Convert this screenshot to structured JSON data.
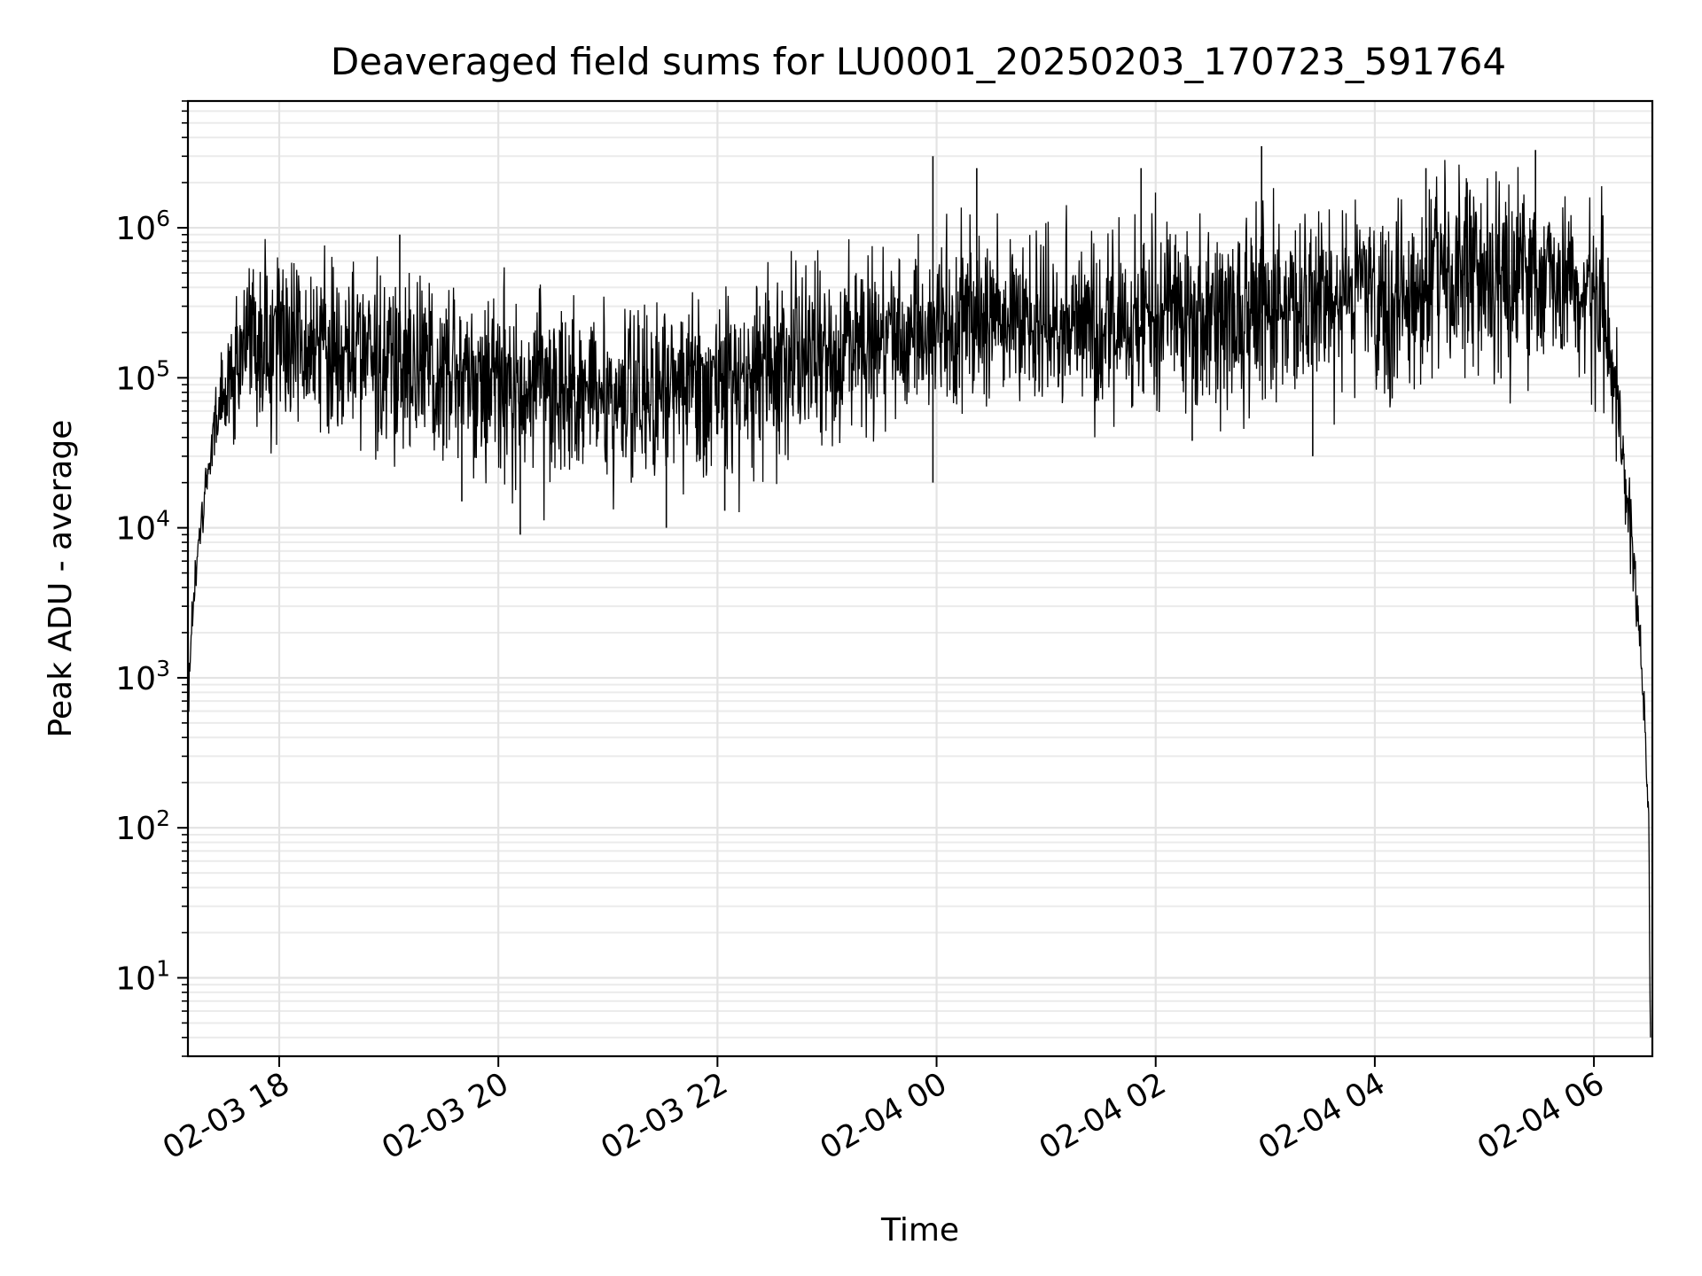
{
  "chart_data": {
    "type": "line",
    "title": "Deaveraged field sums for LU0001_20250203_170723_591764",
    "xlabel": "Time",
    "ylabel": "Peak ADU - average",
    "x_axis": {
      "type": "datetime",
      "range": [
        "2025-02-03T17:10:00",
        "2025-02-04T06:32:00"
      ],
      "ticks": [
        {
          "value": "2025-02-03T18:00",
          "label": "02-03 18"
        },
        {
          "value": "2025-02-03T20:00",
          "label": "02-03 20"
        },
        {
          "value": "2025-02-03T22:00",
          "label": "02-03 22"
        },
        {
          "value": "2025-02-04T00:00",
          "label": "02-04 00"
        },
        {
          "value": "2025-02-04T02:00",
          "label": "02-04 02"
        },
        {
          "value": "2025-02-04T04:00",
          "label": "02-04 04"
        },
        {
          "value": "2025-02-04T06:00",
          "label": "02-04 06"
        }
      ],
      "tick_label_rotation": 30
    },
    "y_axis": {
      "scale": "log",
      "range": [
        3,
        7000000
      ],
      "ticks": [
        {
          "value": 10,
          "base": "10",
          "exponent": "1"
        },
        {
          "value": 100,
          "base": "10",
          "exponent": "2"
        },
        {
          "value": 1000,
          "base": "10",
          "exponent": "3"
        },
        {
          "value": 10000,
          "base": "10",
          "exponent": "4"
        },
        {
          "value": 100000,
          "base": "10",
          "exponent": "5"
        },
        {
          "value": 1000000,
          "base": "10",
          "exponent": "6"
        }
      ]
    },
    "grid": true,
    "grid_minor": true,
    "legend": "none",
    "series": [
      {
        "color": "#000000",
        "points": [
          [
            "2025-02-03T17:10",
            600
          ],
          [
            "2025-02-03T17:12",
            2000
          ],
          [
            "2025-02-03T17:14",
            5000
          ],
          [
            "2025-02-03T17:17",
            10000
          ],
          [
            "2025-02-03T17:20",
            20000
          ],
          [
            "2025-02-03T17:25",
            50000
          ],
          [
            "2025-02-03T17:30",
            80000
          ],
          [
            "2025-02-03T17:36",
            120000
          ],
          [
            "2025-02-03T17:45",
            180000
          ],
          [
            "2025-02-03T18:00",
            170000
          ],
          [
            "2025-02-03T18:20",
            160000
          ],
          [
            "2025-02-03T18:40",
            150000
          ],
          [
            "2025-02-03T19:00",
            130000
          ],
          [
            "2025-02-03T19:20",
            120000
          ],
          [
            "2025-02-03T19:40",
            110000
          ],
          [
            "2025-02-03T20:00",
            90000
          ],
          [
            "2025-02-03T20:20",
            80000
          ],
          [
            "2025-02-03T20:40",
            75000
          ],
          [
            "2025-02-03T21:00",
            80000
          ],
          [
            "2025-02-03T21:20",
            85000
          ],
          [
            "2025-02-03T21:40",
            80000
          ],
          [
            "2025-02-03T22:00",
            90000
          ],
          [
            "2025-02-03T22:20",
            100000
          ],
          [
            "2025-02-03T22:40",
            120000
          ],
          [
            "2025-02-03T23:00",
            140000
          ],
          [
            "2025-02-03T23:20",
            170000
          ],
          [
            "2025-02-03T23:40",
            200000
          ],
          [
            "2025-02-04T00:00",
            220000
          ],
          [
            "2025-02-04T00:20",
            250000
          ],
          [
            "2025-02-04T00:40",
            260000
          ],
          [
            "2025-02-04T01:00",
            260000
          ],
          [
            "2025-02-04T01:20",
            250000
          ],
          [
            "2025-02-04T01:40",
            240000
          ],
          [
            "2025-02-04T02:00",
            240000
          ],
          [
            "2025-02-04T02:20",
            250000
          ],
          [
            "2025-02-04T02:40",
            260000
          ],
          [
            "2025-02-04T03:00",
            270000
          ],
          [
            "2025-02-04T03:20",
            280000
          ],
          [
            "2025-02-04T03:40",
            300000
          ],
          [
            "2025-02-04T04:00",
            320000
          ],
          [
            "2025-02-04T04:20",
            380000
          ],
          [
            "2025-02-04T04:40",
            450000
          ],
          [
            "2025-02-04T05:00",
            500000
          ],
          [
            "2025-02-04T05:20",
            480000
          ],
          [
            "2025-02-04T05:40",
            450000
          ],
          [
            "2025-02-04T06:00",
            400000
          ],
          [
            "2025-02-04T06:05",
            300000
          ],
          [
            "2025-02-04T06:10",
            120000
          ],
          [
            "2025-02-04T06:15",
            40000
          ],
          [
            "2025-02-04T06:20",
            10000
          ],
          [
            "2025-02-04T06:24",
            3000
          ],
          [
            "2025-02-04T06:27",
            800
          ],
          [
            "2025-02-04T06:30",
            100
          ],
          [
            "2025-02-04T06:31",
            4
          ]
        ],
        "noise_scatter_decades": 0.32,
        "spike_maxima": [
          [
            "2025-02-03T19:06",
            900000
          ],
          [
            "2025-02-03T23:58",
            3000000
          ],
          [
            "2025-02-04T00:22",
            2500000
          ],
          [
            "2025-02-04T01:52",
            2500000
          ],
          [
            "2025-02-04T02:58",
            3500000
          ],
          [
            "2025-02-04T04:28",
            2500000
          ],
          [
            "2025-02-04T05:28",
            3300000
          ]
        ],
        "spike_minima": [
          [
            "2025-02-03T19:40",
            15000
          ],
          [
            "2025-02-03T20:12",
            9000
          ],
          [
            "2025-02-03T21:32",
            10000
          ],
          [
            "2025-02-03T22:04",
            13000
          ],
          [
            "2025-02-03T23:58",
            20000
          ],
          [
            "2025-02-04T02:20",
            38000
          ],
          [
            "2025-02-04T03:26",
            30000
          ]
        ]
      }
    ]
  }
}
